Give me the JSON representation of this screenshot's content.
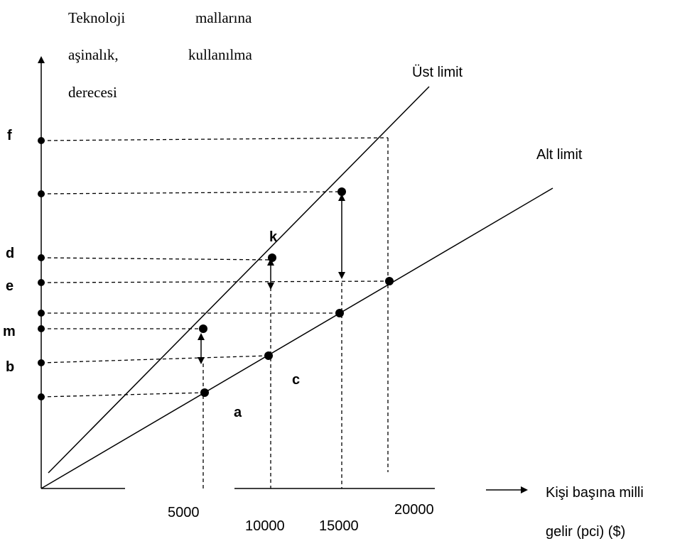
{
  "y_axis_title": {
    "line1_left": "Teknoloji",
    "line1_right": "mallarına",
    "line2_left": "aşinalık,",
    "line2_right": "kullanılma",
    "line3": "derecesi"
  },
  "x_axis_title": {
    "line1": "Kişi başına milli",
    "line2": "gelir (pci) ($)"
  },
  "lines": {
    "upper": "Üst limit",
    "lower": "Alt  limit"
  },
  "y_labels": {
    "f": "f",
    "d": "d",
    "e": "e",
    "m": "m",
    "b": "b"
  },
  "x_ticks": {
    "t5000": "5000",
    "t10000": "10000",
    "t15000": "15000",
    "t20000": "20000"
  },
  "points": {
    "k": "k",
    "c": "c",
    "a": "a"
  }
}
